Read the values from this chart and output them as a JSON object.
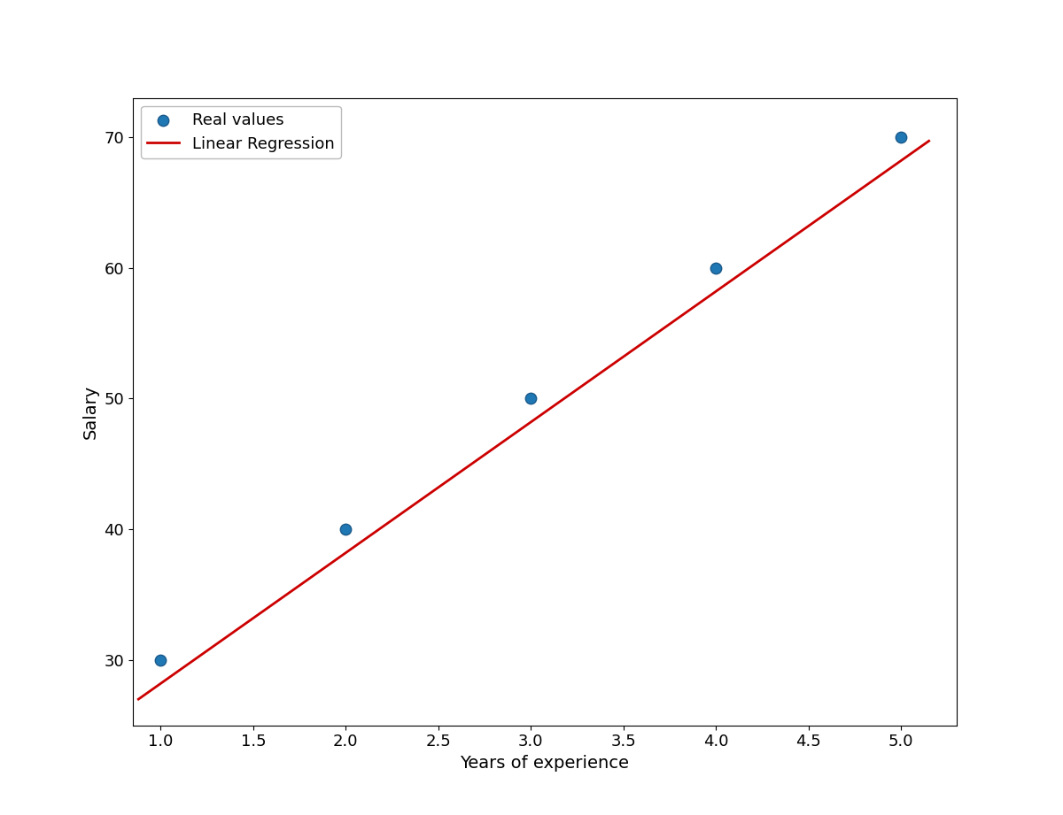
{
  "x_data": [
    1,
    2,
    3,
    4,
    5
  ],
  "y_data": [
    30,
    40,
    50,
    60,
    70
  ],
  "line_x": [
    0.88,
    5.15
  ],
  "line_slope": 10.0,
  "line_intercept": 18.2,
  "scatter_color": "#1f77b4",
  "scatter_edgecolor": "#1a5a8a",
  "scatter_size": 80,
  "line_color": "#cc0000",
  "line_width": 2.0,
  "xlabel": "Years of experience",
  "ylabel": "Salary",
  "xlabel_fontsize": 14,
  "ylabel_fontsize": 14,
  "tick_fontsize": 13,
  "legend_labels": [
    "Real values",
    "Linear Regression"
  ],
  "legend_fontsize": 13,
  "xlim": [
    0.85,
    5.3
  ],
  "ylim": [
    25,
    73
  ],
  "background_color": "#ffffff",
  "figure_width": 12.0,
  "figure_height": 9.21
}
